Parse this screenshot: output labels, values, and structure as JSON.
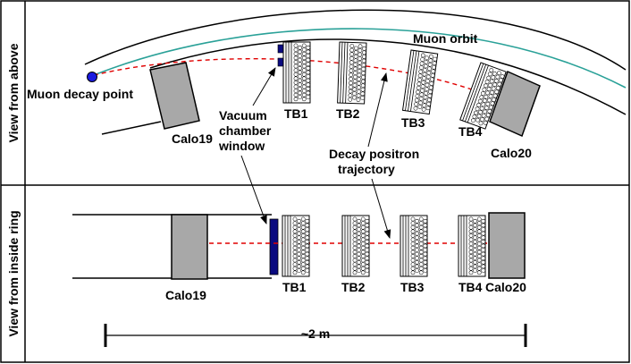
{
  "panels": {
    "top_label": "View from above",
    "bottom_label": "View from inside ring"
  },
  "labels": {
    "muon_orbit": "Muon orbit",
    "muon_decay_point": "Muon decay point",
    "vacuum_chamber_window": [
      "Vacuum",
      "chamber",
      "window"
    ],
    "decay_positron_trajectory": [
      "Decay positron",
      "trajectory"
    ],
    "scale": "~2 m"
  },
  "detectors": {
    "top": {
      "calo_left": "Calo19",
      "tb1": "TB1",
      "tb2": "TB2",
      "tb3": "TB3",
      "tb4": "TB4",
      "calo_right": "Calo20"
    },
    "bottom": {
      "calo_left": "Calo19",
      "tb1": "TB1",
      "tb2": "TB2",
      "tb3": "TB3",
      "tb4": "TB4",
      "calo_right": "Calo20"
    }
  },
  "colors": {
    "orbit": "#2aa198",
    "trajectory": "#e00000",
    "window": "#0a0a80",
    "decay_point": "#1a1ae0",
    "calorimeter": "#a8a8a8"
  }
}
